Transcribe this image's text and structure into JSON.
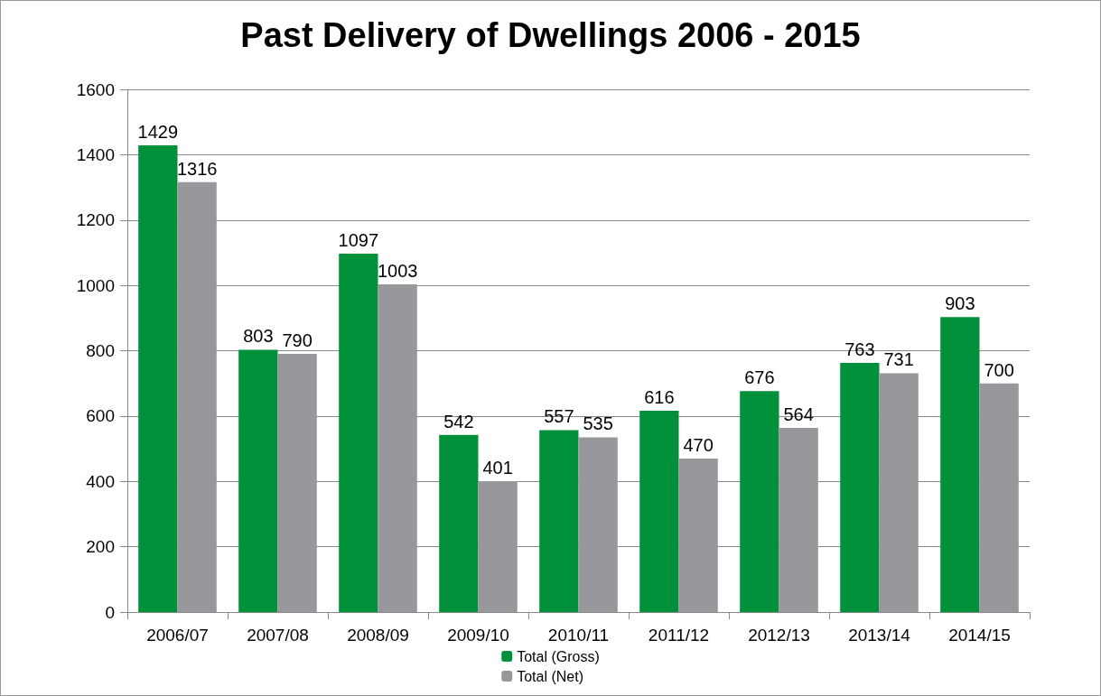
{
  "chart_data": {
    "type": "bar",
    "title": "Past Delivery of Dwellings 2006 - 2015",
    "categories": [
      "2006/07",
      "2007/08",
      "2008/09",
      "2009/10",
      "2010/11",
      "2011/12",
      "2012/13",
      "2013/14",
      "2014/15"
    ],
    "series": [
      {
        "name": "Total (Gross)",
        "color": "#00913a",
        "values": [
          1429,
          803,
          1097,
          542,
          557,
          616,
          676,
          763,
          903
        ]
      },
      {
        "name": "Total (Net)",
        "color": "#98989c",
        "values": [
          1316,
          790,
          1003,
          401,
          535,
          470,
          564,
          731,
          700
        ]
      }
    ],
    "ylim": [
      0,
      1600
    ],
    "yticks": [
      0,
      200,
      400,
      600,
      800,
      1000,
      1200,
      1400,
      1600
    ],
    "grid": "y",
    "data_labels": true,
    "legend": "bottom"
  }
}
